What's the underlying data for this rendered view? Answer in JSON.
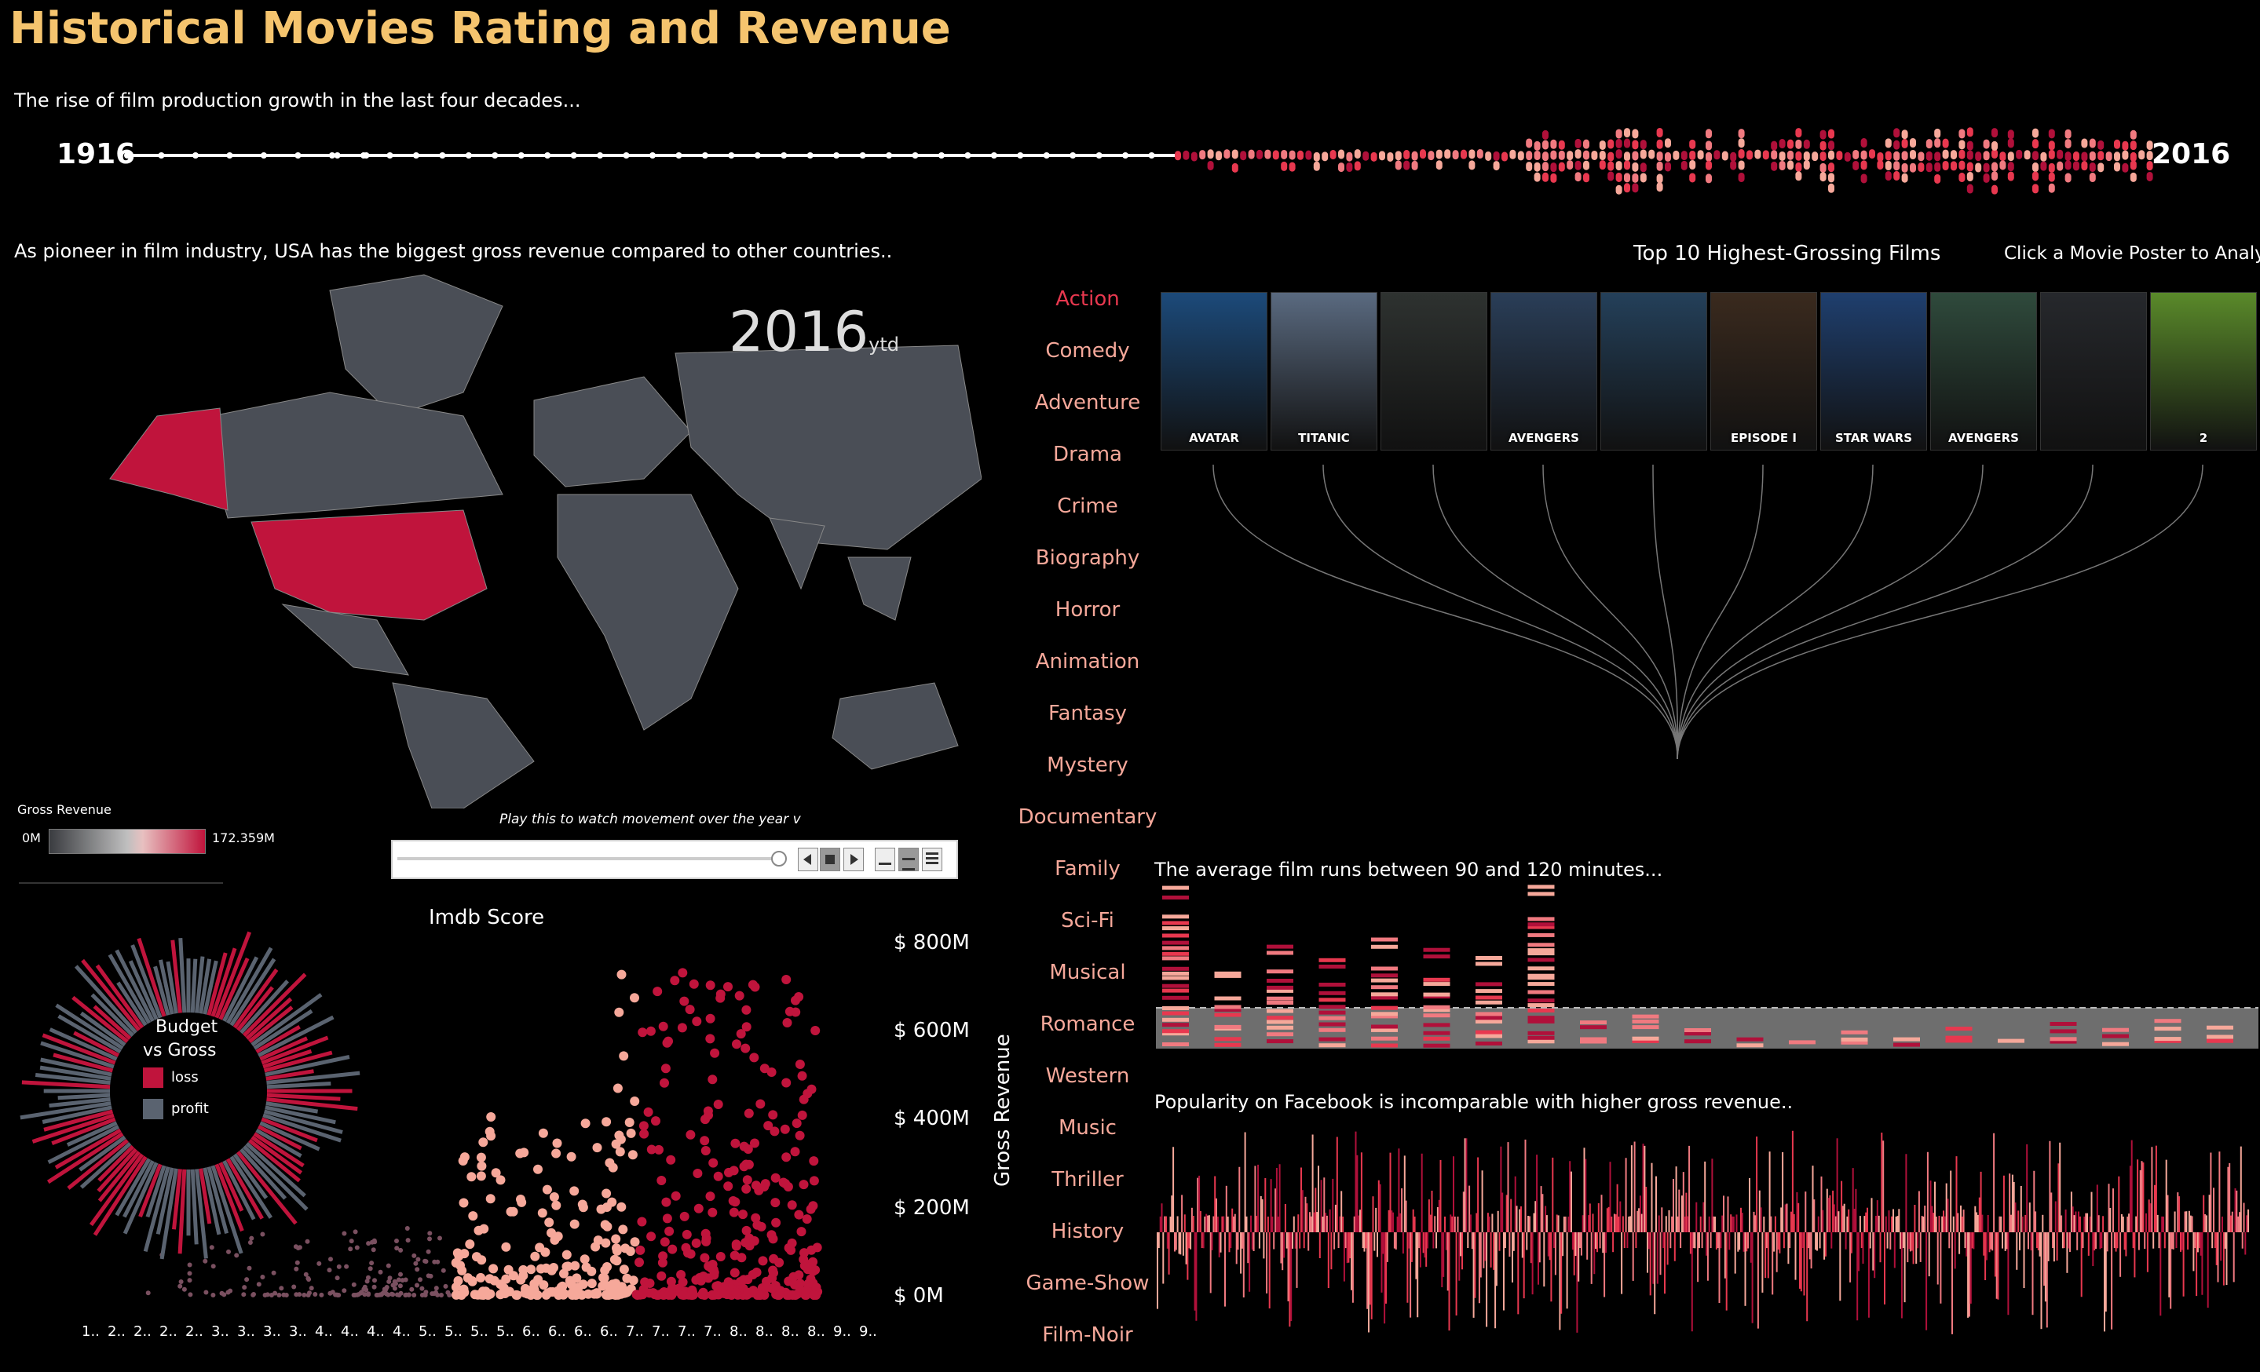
{
  "title": "Historical Movies Rating and Revenue",
  "captions": {
    "timeline": "The rise of film production growth in the last four decades...",
    "map": "As pioneer in film industry, USA has the biggest gross revenue compared to other countries..",
    "runtime": "The average film runs between 90 and 120 minutes...",
    "facebook": "Popularity on Facebook is incomparable with higher gross revenue.."
  },
  "timeline": {
    "start_year": "1916",
    "end_year": "2016"
  },
  "map": {
    "year": "2016",
    "year_suffix": "ytd",
    "legend_title": "Gross Revenue",
    "legend_min": "0M",
    "legend_max": "172.359M",
    "play_hint": "Play this to watch movement over the year",
    "play_hint_caret": "v",
    "highlight_color": "#c0143c",
    "land_color": "#4a4e56"
  },
  "genres": {
    "items": [
      "Action",
      "Comedy",
      "Adventure",
      "Drama",
      "Crime",
      "Biography",
      "Horror",
      "Animation",
      "Fantasy",
      "Mystery",
      "Documentary",
      "Family",
      "Sci-Fi",
      "Musical",
      "Romance",
      "Western",
      "Music",
      "Thriller",
      "History",
      "Game-Show",
      "Film-Noir"
    ],
    "active": "Action"
  },
  "top10": {
    "title": "Top 10 Highest-Grossing Films",
    "hint": "Click a Movie Poster to Analyze",
    "posters": [
      {
        "text": "AVATAR",
        "color": "#1c4a7a"
      },
      {
        "text": "TITANIC",
        "color": "#5a6a80"
      },
      {
        "text": "",
        "color": "#2e3230"
      },
      {
        "text": "AVENGERS",
        "color": "#2a3e58"
      },
      {
        "text": "",
        "color": "#24405a"
      },
      {
        "text": "EPISODE I",
        "color": "#3a2a1e"
      },
      {
        "text": "STAR WARS",
        "color": "#1f3f6e"
      },
      {
        "text": "AVENGERS",
        "color": "#2f4a3c"
      },
      {
        "text": "",
        "color": "#26282c"
      },
      {
        "text": "2",
        "color": "#5a8a2a"
      }
    ]
  },
  "scatter": {
    "title": "Imdb Score",
    "y_axis_label": "Gross Revenue",
    "y_ticks": [
      "$ 800M",
      "$ 600M",
      "$ 400M",
      "$ 200M",
      "$ 0M"
    ],
    "x_ticks": [
      "1..",
      "2..",
      "2..",
      "2..",
      "2..",
      "3..",
      "3..",
      "3..",
      "3..",
      "4..",
      "4..",
      "4..",
      "4..",
      "5..",
      "5..",
      "5..",
      "5..",
      "6..",
      "6..",
      "6..",
      "6..",
      "7..",
      "7..",
      "7..",
      "7..",
      "8..",
      "8..",
      "8..",
      "8..",
      "9..",
      "9.."
    ],
    "legend_title_1": "Budget",
    "legend_title_2": "vs Gross",
    "legend_loss": "loss",
    "legend_profit": "profit",
    "loss_color": "#c0143c",
    "profit_color": "#5a6370"
  },
  "colors": {
    "accent": "#e8384f",
    "light": "#f6a89a",
    "dark": "#b0103a",
    "title": "#f5c46e"
  }
}
